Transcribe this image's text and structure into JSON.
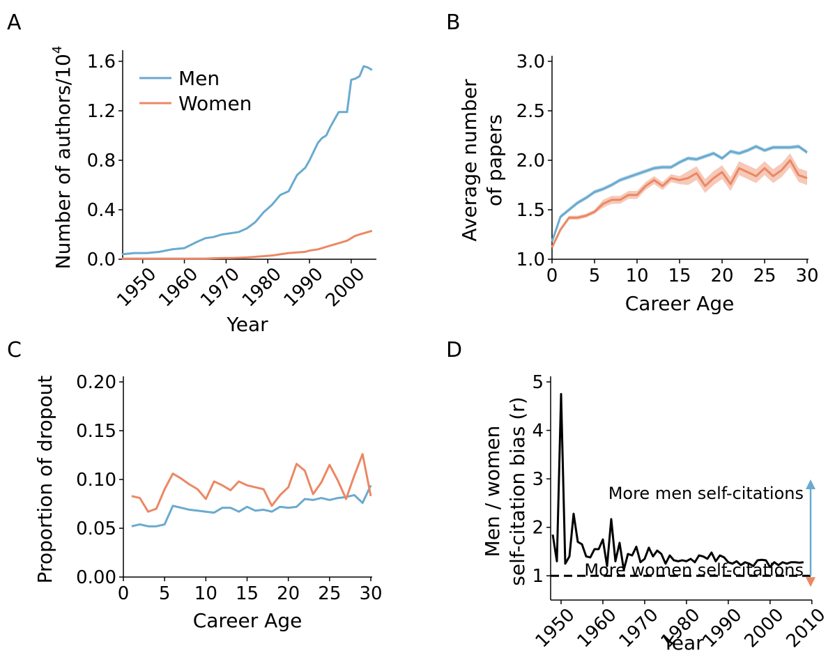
{
  "chart_data": [
    {
      "type": "line",
      "panel": "A",
      "xlabel": "Year",
      "ylabel": "Number of authors/10",
      "ylabel_superscript": "4",
      "xlim": [
        1945.2,
        2005.7
      ],
      "xticks": [
        1950,
        1960,
        1970,
        1980,
        1990,
        2000
      ],
      "xtick_rotation": 45,
      "ylim": [
        0,
        1.645
      ],
      "yticks": [
        {
          "value": 0,
          "label": "0.0"
        },
        0.4,
        0.8,
        1.2,
        1.6
      ],
      "legend": "upper left",
      "x": [
        1945,
        1948,
        1951,
        1954,
        1957,
        1960,
        1963,
        1965,
        1967,
        1969,
        1971,
        1973,
        1975,
        1977,
        1979,
        1981,
        1983,
        1985,
        1987,
        1989,
        1990,
        1991,
        1992,
        1993,
        1994,
        1995,
        1996,
        1997,
        1998,
        1999,
        2000,
        2001,
        2002,
        2003,
        2004,
        2005
      ],
      "series": [
        {
          "name": "Men",
          "color": "#6aaacf",
          "values": [
            0.04,
            0.05,
            0.05,
            0.06,
            0.08,
            0.09,
            0.14,
            0.17,
            0.18,
            0.2,
            0.21,
            0.22,
            0.25,
            0.3,
            0.38,
            0.44,
            0.52,
            0.55,
            0.68,
            0.74,
            0.8,
            0.87,
            0.94,
            0.98,
            1.0,
            1.07,
            1.13,
            1.19,
            1.19,
            1.19,
            1.45,
            1.46,
            1.48,
            1.56,
            1.55,
            1.53
          ]
        },
        {
          "name": "Women",
          "color": "#eb8864",
          "values": [
            0.005,
            0.005,
            0.005,
            0.005,
            0.005,
            0.005,
            0.005,
            0.005,
            0.008,
            0.01,
            0.01,
            0.012,
            0.015,
            0.02,
            0.025,
            0.03,
            0.04,
            0.05,
            0.055,
            0.06,
            0.07,
            0.075,
            0.08,
            0.09,
            0.1,
            0.11,
            0.12,
            0.13,
            0.14,
            0.15,
            0.17,
            0.19,
            0.2,
            0.21,
            0.22,
            0.23
          ]
        }
      ]
    },
    {
      "type": "line",
      "panel": "B",
      "xlabel": "Career Age",
      "ylabel": [
        "Average number",
        "of papers"
      ],
      "xlim": [
        0,
        30
      ],
      "xticks": [
        0,
        5,
        10,
        15,
        20,
        25,
        30
      ],
      "ylim": [
        1,
        3
      ],
      "yticks": [
        {
          "value": 1,
          "label": "1.0"
        },
        1.5,
        {
          "value": 2,
          "label": "2.0"
        },
        2.5,
        {
          "value": 3,
          "label": "3.0"
        }
      ],
      "x": [
        0,
        1,
        2,
        3,
        4,
        5,
        6,
        7,
        8,
        9,
        10,
        11,
        12,
        13,
        14,
        15,
        16,
        17,
        18,
        19,
        20,
        21,
        22,
        23,
        24,
        25,
        26,
        27,
        28,
        29,
        30
      ],
      "series": [
        {
          "color": "#6aaacf",
          "values": [
            1.18,
            1.43,
            1.5,
            1.57,
            1.62,
            1.68,
            1.71,
            1.75,
            1.8,
            1.83,
            1.86,
            1.89,
            1.92,
            1.93,
            1.93,
            1.98,
            2.02,
            2.01,
            2.04,
            2.07,
            2.02,
            2.09,
            2.07,
            2.1,
            2.14,
            2.1,
            2.13,
            2.13,
            2.13,
            2.14,
            2.08
          ],
          "upper": [
            1.2,
            1.45,
            1.52,
            1.59,
            1.64,
            1.7,
            1.73,
            1.77,
            1.82,
            1.85,
            1.88,
            1.91,
            1.94,
            1.95,
            1.95,
            2.0,
            2.04,
            2.03,
            2.06,
            2.09,
            2.04,
            2.11,
            2.09,
            2.12,
            2.16,
            2.12,
            2.15,
            2.15,
            2.15,
            2.16,
            2.1
          ],
          "lower": [
            1.16,
            1.41,
            1.48,
            1.55,
            1.6,
            1.66,
            1.69,
            1.73,
            1.78,
            1.81,
            1.84,
            1.87,
            1.9,
            1.91,
            1.91,
            1.96,
            2.0,
            1.99,
            2.02,
            2.05,
            2.0,
            2.07,
            2.05,
            2.08,
            2.12,
            2.08,
            2.11,
            2.11,
            2.11,
            2.12,
            2.06
          ]
        },
        {
          "color": "#eb8864",
          "values": [
            1.12,
            1.3,
            1.42,
            1.42,
            1.44,
            1.48,
            1.56,
            1.6,
            1.6,
            1.65,
            1.65,
            1.74,
            1.8,
            1.74,
            1.82,
            1.8,
            1.82,
            1.87,
            1.74,
            1.82,
            1.88,
            1.76,
            1.92,
            1.88,
            1.84,
            1.92,
            1.84,
            1.9,
            2.0,
            1.85,
            1.82
          ],
          "upper": [
            1.14,
            1.32,
            1.44,
            1.44,
            1.46,
            1.5,
            1.6,
            1.64,
            1.64,
            1.69,
            1.69,
            1.78,
            1.84,
            1.78,
            1.86,
            1.84,
            1.89,
            1.94,
            1.81,
            1.89,
            1.95,
            1.83,
            1.99,
            1.95,
            1.91,
            1.99,
            1.91,
            1.97,
            2.07,
            1.92,
            1.89
          ],
          "lower": [
            1.1,
            1.28,
            1.4,
            1.4,
            1.42,
            1.46,
            1.52,
            1.56,
            1.56,
            1.61,
            1.61,
            1.7,
            1.76,
            1.7,
            1.78,
            1.76,
            1.75,
            1.8,
            1.67,
            1.75,
            1.81,
            1.69,
            1.85,
            1.81,
            1.77,
            1.85,
            1.77,
            1.83,
            1.93,
            1.78,
            1.75
          ]
        }
      ]
    },
    {
      "type": "line",
      "panel": "C",
      "xlabel": "Career Age",
      "ylabel": "Proportion of dropout",
      "xlim": [
        0,
        30
      ],
      "xticks": [
        0,
        5,
        10,
        15,
        20,
        25,
        30
      ],
      "ylim": [
        0,
        0.2
      ],
      "yticks": [
        {
          "value": 0,
          "label": "0.00"
        },
        0.05,
        {
          "value": 0.1,
          "label": "0.10"
        },
        0.15,
        {
          "value": 0.2,
          "label": "0.20"
        }
      ],
      "x": [
        1,
        2,
        3,
        4,
        5,
        6,
        7,
        8,
        9,
        10,
        11,
        12,
        13,
        14,
        15,
        16,
        17,
        18,
        19,
        20,
        21,
        22,
        23,
        24,
        25,
        26,
        27,
        28,
        29,
        30
      ],
      "series": [
        {
          "color": "#6aaacf",
          "values": [
            0.052,
            0.054,
            0.052,
            0.052,
            0.054,
            0.073,
            0.071,
            0.069,
            0.068,
            0.067,
            0.066,
            0.071,
            0.071,
            0.067,
            0.072,
            0.068,
            0.069,
            0.067,
            0.072,
            0.071,
            0.072,
            0.08,
            0.079,
            0.081,
            0.079,
            0.081,
            0.082,
            0.084,
            0.076,
            0.094
          ]
        },
        {
          "color": "#eb8864",
          "values": [
            0.083,
            0.081,
            0.067,
            0.07,
            0.09,
            0.106,
            0.101,
            0.095,
            0.09,
            0.08,
            0.098,
            0.094,
            0.089,
            0.098,
            0.094,
            0.092,
            0.09,
            0.073,
            0.084,
            0.092,
            0.116,
            0.109,
            0.085,
            0.097,
            0.115,
            0.099,
            0.08,
            0.104,
            0.126,
            0.083
          ]
        }
      ]
    },
    {
      "type": "line",
      "panel": "D",
      "xlabel": "Year",
      "ylabel": [
        "Men / women",
        "self-citation bias (r)"
      ],
      "xlim": [
        1947.5,
        2009.7
      ],
      "xticks": [
        1950,
        1960,
        1970,
        1980,
        1990,
        2000,
        2010
      ],
      "xtick_rotation": 45,
      "ylim": [
        0.5,
        5
      ],
      "yticks": [
        1,
        2,
        3,
        4,
        5
      ],
      "hline": 1,
      "annotations": [
        {
          "text": "More men self-citations",
          "color": "#6aaacf"
        },
        {
          "text": "More women self-citations",
          "color": "#eb8864"
        }
      ],
      "x": [
        1948,
        1949,
        1950,
        1951,
        1952,
        1953,
        1954,
        1955,
        1956,
        1957,
        1958,
        1959,
        1960,
        1961,
        1962,
        1963,
        1964,
        1965,
        1966,
        1967,
        1968,
        1969,
        1970,
        1971,
        1972,
        1973,
        1974,
        1975,
        1976,
        1977,
        1978,
        1979,
        1980,
        1981,
        1982,
        1983,
        1984,
        1985,
        1986,
        1987,
        1988,
        1989,
        1990,
        1991,
        1992,
        1993,
        1994,
        1995,
        1996,
        1997,
        1998,
        1999,
        2000,
        2001,
        2002,
        2003,
        2004,
        2005,
        2006,
        2007,
        2008
      ],
      "series": [
        {
          "color": "#000000",
          "values": [
            1.85,
            1.3,
            4.75,
            1.25,
            1.4,
            2.28,
            1.7,
            1.65,
            1.4,
            1.38,
            1.55,
            1.55,
            1.75,
            1.2,
            2.17,
            1.3,
            1.68,
            1.12,
            1.45,
            1.42,
            1.6,
            1.28,
            1.35,
            1.58,
            1.4,
            1.52,
            1.45,
            1.25,
            1.42,
            1.32,
            1.3,
            1.32,
            1.3,
            1.35,
            1.28,
            1.42,
            1.4,
            1.35,
            1.48,
            1.3,
            1.42,
            1.38,
            1.28,
            1.25,
            1.3,
            1.22,
            1.28,
            1.25,
            1.2,
            1.32,
            1.33,
            1.32,
            1.18,
            1.28,
            1.22,
            1.28,
            1.25,
            1.28,
            1.28,
            1.27,
            1.28
          ]
        }
      ]
    }
  ]
}
